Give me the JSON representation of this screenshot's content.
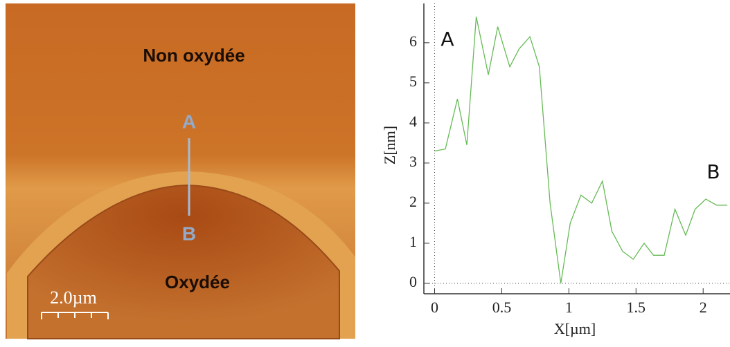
{
  "image": {
    "labels": [
      "Non oxydée",
      "A",
      "B",
      "Oxydée"
    ],
    "scale_bar": "2.0µm"
  },
  "chart_data": {
    "type": "line",
    "xlabel": "X[µm]",
    "ylabel": "Z[nm]",
    "annotations": [
      "A",
      "B"
    ],
    "x": [
      0,
      0.08,
      0.17,
      0.24,
      0.31,
      0.4,
      0.47,
      0.56,
      0.63,
      0.71,
      0.78,
      0.86,
      0.94,
      1.01,
      1.09,
      1.17,
      1.25,
      1.32,
      1.4,
      1.48,
      1.56,
      1.63,
      1.71,
      1.79,
      1.87,
      1.94,
      2.02,
      2.1,
      2.18
    ],
    "series": [
      {
        "color": "#66bb55",
        "values": [
          3.3,
          3.35,
          4.6,
          3.45,
          6.65,
          5.2,
          6.4,
          5.4,
          5.85,
          6.15,
          5.4,
          2.0,
          0.0,
          1.5,
          2.2,
          2.0,
          2.55,
          1.3,
          0.8,
          0.6,
          1.0,
          0.7,
          0.7,
          1.85,
          1.2,
          1.85,
          2.1,
          1.95,
          1.95
        ]
      }
    ],
    "xlim": [
      -0.08,
      2.2
    ],
    "ylim": [
      -0.26,
      6.98
    ],
    "xticks": [
      0,
      0.5,
      1,
      1.5,
      2
    ],
    "yticks": [
      0,
      1,
      2,
      3,
      4,
      5,
      6
    ]
  }
}
